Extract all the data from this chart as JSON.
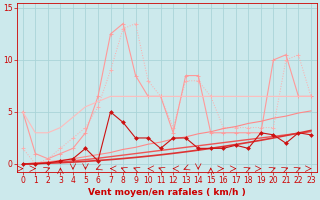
{
  "background_color": "#cce9ec",
  "grid_color": "#aad4d8",
  "xlabel": "Vent moyen/en rafales ( km/h )",
  "xlim": [
    -0.5,
    23.5
  ],
  "ylim": [
    -0.8,
    15.5
  ],
  "yticks": [
    0,
    5,
    10,
    15
  ],
  "xticks": [
    0,
    1,
    2,
    3,
    4,
    5,
    6,
    7,
    8,
    9,
    10,
    11,
    12,
    13,
    14,
    15,
    16,
    17,
    18,
    19,
    20,
    21,
    22,
    23
  ],
  "x": [
    0,
    1,
    2,
    3,
    4,
    5,
    6,
    7,
    8,
    9,
    10,
    11,
    12,
    13,
    14,
    15,
    16,
    17,
    18,
    19,
    20,
    21,
    22,
    23
  ],
  "line_dotted_y": [
    1.5,
    0.0,
    0.5,
    1.5,
    2.5,
    3.5,
    5.5,
    9.0,
    13.0,
    13.5,
    8.0,
    6.5,
    3.5,
    8.0,
    8.0,
    6.5,
    3.5,
    3.5,
    3.5,
    3.5,
    3.5,
    10.0,
    10.5,
    6.5
  ],
  "line_dotted_color": "#ffaaaa",
  "line_dotted_lw": 0.7,
  "line_solid_pink_y": [
    5.0,
    1.0,
    0.5,
    1.0,
    1.5,
    3.0,
    6.5,
    12.5,
    13.5,
    8.5,
    6.5,
    6.5,
    3.0,
    8.5,
    8.5,
    3.0,
    3.0,
    3.0,
    3.0,
    3.0,
    10.0,
    10.5,
    6.5,
    6.5
  ],
  "line_solid_pink_color": "#ff9999",
  "line_solid_pink_lw": 0.8,
  "line_pale_upper_y": [
    5.0,
    3.0,
    3.0,
    3.5,
    4.5,
    5.5,
    6.0,
    6.5,
    6.5,
    6.5,
    6.5,
    6.5,
    6.5,
    6.5,
    6.5,
    6.5,
    6.5,
    6.5,
    6.5,
    6.5,
    6.5,
    6.5,
    6.5,
    6.5
  ],
  "line_pale_upper_color": "#ffbbbb",
  "line_pale_upper_lw": 0.8,
  "line_trend1_y": [
    0.0,
    0.1,
    0.2,
    0.35,
    0.5,
    0.7,
    0.9,
    1.1,
    1.4,
    1.6,
    1.9,
    2.1,
    2.4,
    2.6,
    2.9,
    3.1,
    3.4,
    3.6,
    3.9,
    4.1,
    4.4,
    4.6,
    4.9,
    5.1
  ],
  "line_trend1_color": "#ff8888",
  "line_trend1_lw": 0.8,
  "line_trend2_y": [
    0.0,
    0.05,
    0.12,
    0.2,
    0.3,
    0.42,
    0.55,
    0.7,
    0.85,
    1.0,
    1.15,
    1.3,
    1.45,
    1.6,
    1.75,
    1.9,
    2.05,
    2.2,
    2.35,
    2.5,
    2.65,
    2.8,
    2.95,
    3.1
  ],
  "line_trend2_color": "#ee5555",
  "line_trend2_lw": 1.0,
  "line_trend3_y": [
    0.0,
    0.03,
    0.07,
    0.12,
    0.18,
    0.25,
    0.33,
    0.42,
    0.52,
    0.63,
    0.75,
    0.88,
    1.02,
    1.17,
    1.33,
    1.5,
    1.68,
    1.87,
    2.07,
    2.28,
    2.5,
    2.73,
    2.97,
    3.22
  ],
  "line_trend3_color": "#dd3333",
  "line_trend3_lw": 1.2,
  "line_dark_jagged_y": [
    0.0,
    0.0,
    0.1,
    0.3,
    0.5,
    1.5,
    0.3,
    5.0,
    4.0,
    2.5,
    2.5,
    1.5,
    2.5,
    2.5,
    1.5,
    1.5,
    1.5,
    1.8,
    1.5,
    3.0,
    2.8,
    2.0,
    3.0,
    2.8
  ],
  "line_dark_jagged_color": "#cc1111",
  "line_dark_jagged_lw": 0.8,
  "tick_fontsize": 5.5,
  "xlabel_fontsize": 6.5,
  "tick_color": "#cc0000",
  "spine_color": "#cc0000",
  "arrow_directions": [
    0,
    0,
    45,
    90,
    270,
    270,
    225,
    180,
    135,
    135,
    180,
    135,
    180,
    225,
    270,
    90,
    0,
    0,
    45,
    0,
    45,
    45,
    45,
    0
  ]
}
